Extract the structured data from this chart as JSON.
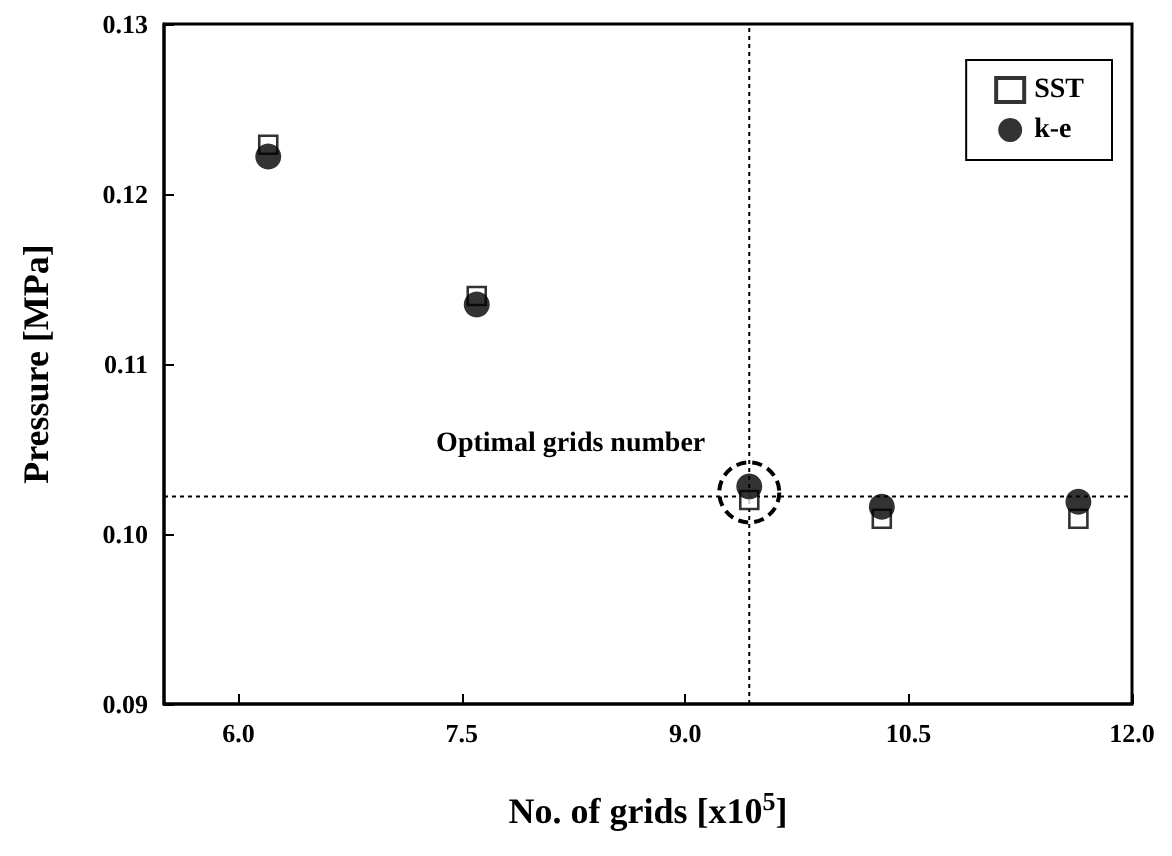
{
  "chart_data": {
    "type": "scatter",
    "xlabel": "No. of grids [x10$^{5}$]",
    "ylabel": "Pressure [MPa]",
    "x": [
      6.2,
      7.6,
      9.43,
      10.32,
      11.64
    ],
    "series": [
      {
        "name": "SST",
        "color": "#000000",
        "marker": "square",
        "values": [
          0.1229,
          0.114,
          0.102,
          0.1009,
          0.1009
        ]
      },
      {
        "name": "k-e",
        "color": "#000000",
        "marker": "circle",
        "values": [
          0.1222,
          0.1135,
          0.1028,
          0.1016,
          0.1019
        ]
      }
    ],
    "xlim": [
      5.5,
      12.0
    ],
    "xticks": [
      {
        "value": 6,
        "label": "6.0"
      },
      7.5,
      {
        "value": 9,
        "label": "9.0"
      },
      10.5,
      {
        "value": 12,
        "label": "12.0"
      }
    ],
    "ylim": [
      0.09,
      0.13
    ],
    "yticks": [
      0.09,
      {
        "value": 0.1,
        "label": "0.10"
      },
      0.11,
      0.12,
      0.13
    ],
    "ref_lines": [
      {
        "axis": "x",
        "value": 9.43,
        "line_style": "dotted"
      },
      {
        "axis": "y",
        "value": 0.1022,
        "line_style": "dotted"
      }
    ],
    "annotations": [
      {
        "text": "Optimal grids number",
        "x": 9.43,
        "y": 0.1028
      }
    ],
    "grid": false,
    "legend": "top right"
  }
}
